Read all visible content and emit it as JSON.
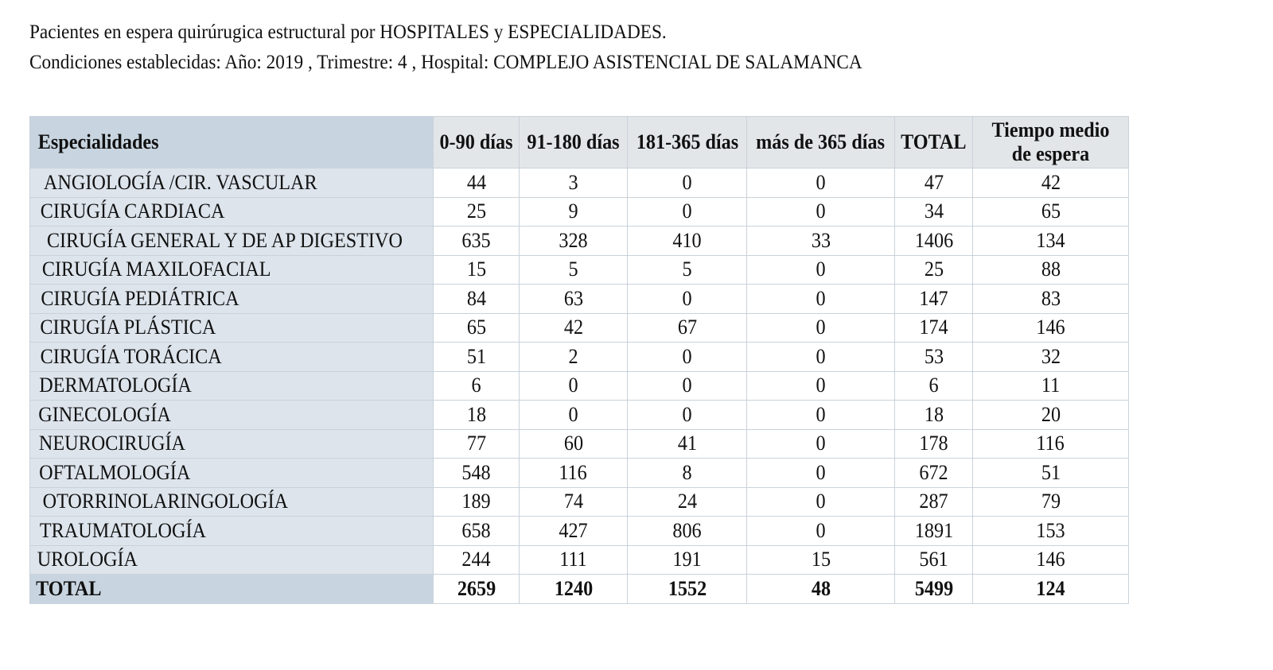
{
  "heading": {
    "line1": "Pacientes en espera quirúrugica estructural por HOSPITALES y ESPECIALIDADES.",
    "line2": "Condiciones establecidas: Año: 2019 , Trimestre: 4 , Hospital: COMPLEJO ASISTENCIAL DE SALAMANCA"
  },
  "table": {
    "headers": [
      "Especialidades",
      "0-90 días",
      "91-180 días",
      "181-365 días",
      "más de 365 días",
      "TOTAL",
      "Tiempo medio de espera"
    ],
    "rows": [
      [
        "ANGIOLOGÍA /CIR. VASCULAR",
        "44",
        "3",
        "0",
        "0",
        "47",
        "42"
      ],
      [
        "CIRUGÍA CARDIACA",
        "25",
        "9",
        "0",
        "0",
        "34",
        "65"
      ],
      [
        "CIRUGÍA GENERAL Y DE AP DIGESTIVO",
        "635",
        "328",
        "410",
        "33",
        "1406",
        "134"
      ],
      [
        "CIRUGÍA MAXILOFACIAL",
        "15",
        "5",
        "5",
        "0",
        "25",
        "88"
      ],
      [
        "CIRUGÍA PEDIÁTRICA",
        "84",
        "63",
        "0",
        "0",
        "147",
        "83"
      ],
      [
        "CIRUGÍA PLÁSTICA",
        "65",
        "42",
        "67",
        "0",
        "174",
        "146"
      ],
      [
        "CIRUGÍA TORÁCICA",
        "51",
        "2",
        "0",
        "0",
        "53",
        "32"
      ],
      [
        "DERMATOLOGÍA",
        "6",
        "0",
        "0",
        "0",
        "6",
        "11"
      ],
      [
        "GINECOLOGÍA",
        "18",
        "0",
        "0",
        "0",
        "18",
        "20"
      ],
      [
        "NEUROCIRUGÍA",
        "77",
        "60",
        "41",
        "0",
        "178",
        "116"
      ],
      [
        "OFTALMOLOGÍA",
        "548",
        "116",
        "8",
        "0",
        "672",
        "51"
      ],
      [
        "OTORRINOLARINGOLOGÍA",
        "189",
        "74",
        "24",
        "0",
        "287",
        "79"
      ],
      [
        "TRAUMATOLOGÍA",
        "658",
        "427",
        "806",
        "0",
        "1891",
        "153"
      ],
      [
        "UROLOGÍA",
        "244",
        "111",
        "191",
        "15",
        "561",
        "146"
      ]
    ],
    "total": [
      "TOTAL",
      "2659",
      "1240",
      "1552",
      "48",
      "5499",
      "124"
    ]
  }
}
